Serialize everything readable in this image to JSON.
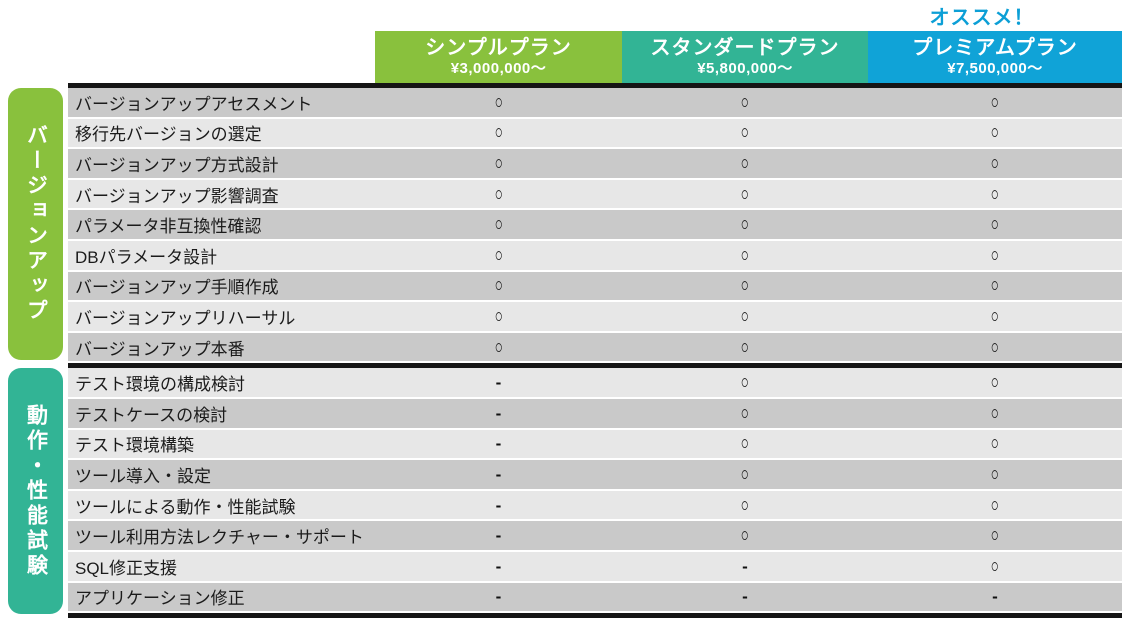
{
  "recommend_label": "オススメ！",
  "colors": {
    "simple_green": "#89C13D",
    "standard_teal": "#32B495",
    "premium_blue": "#10A3D7",
    "recommend_text": "#0C9FD6",
    "row_dark": "#C9C9C9",
    "row_light": "#E7E7E7",
    "divider_black": "#151515"
  },
  "plans": [
    {
      "name": "シンプルプラン",
      "price": "¥3,000,000～"
    },
    {
      "name": "スタンダードプラン",
      "price": "¥5,800,000～"
    },
    {
      "name": "プレミアムプラン",
      "price": "¥7,500,000～",
      "recommended": true
    }
  ],
  "sections": [
    {
      "label": "バージョンアップ",
      "rows": [
        {
          "label": "バージョンアップアセスメント",
          "marks": [
            "○",
            "○",
            "○"
          ]
        },
        {
          "label": "移行先バージョンの選定",
          "marks": [
            "○",
            "○",
            "○"
          ]
        },
        {
          "label": "バージョンアップ方式設計",
          "marks": [
            "○",
            "○",
            "○"
          ]
        },
        {
          "label": "バージョンアップ影響調査",
          "marks": [
            "○",
            "○",
            "○"
          ]
        },
        {
          "label": "パラメータ非互換性確認",
          "marks": [
            "○",
            "○",
            "○"
          ]
        },
        {
          "label": "DBパラメータ設計",
          "marks": [
            "○",
            "○",
            "○"
          ]
        },
        {
          "label": "バージョンアップ手順作成",
          "marks": [
            "○",
            "○",
            "○"
          ]
        },
        {
          "label": "バージョンアップリハーサル",
          "marks": [
            "○",
            "○",
            "○"
          ]
        },
        {
          "label": "バージョンアップ本番",
          "marks": [
            "○",
            "○",
            "○"
          ]
        }
      ]
    },
    {
      "label": "動作・性能試験",
      "rows": [
        {
          "label": "テスト環境の構成検討",
          "marks": [
            "-",
            "○",
            "○"
          ]
        },
        {
          "label": "テストケースの検討",
          "marks": [
            "-",
            "○",
            "○"
          ]
        },
        {
          "label": "テスト環境構築",
          "marks": [
            "-",
            "○",
            "○"
          ]
        },
        {
          "label": "ツール導入・設定",
          "marks": [
            "-",
            "○",
            "○"
          ]
        },
        {
          "label": "ツールによる動作・性能試験",
          "marks": [
            "-",
            "○",
            "○"
          ]
        },
        {
          "label": "ツール利用方法レクチャー・サポート",
          "marks": [
            "-",
            "○",
            "○"
          ]
        },
        {
          "label": "SQL修正支援",
          "marks": [
            "-",
            "-",
            "○"
          ]
        },
        {
          "label": "アプリケーション修正",
          "marks": [
            "-",
            "-",
            "-"
          ]
        }
      ]
    }
  ],
  "chart_data": {
    "type": "table",
    "title": "",
    "annotations": [
      "オススメ！ → プレミアムプラン"
    ],
    "columns": [
      "シンプルプラン ¥3,000,000～",
      "スタンダードプラン ¥5,800,000～",
      "プレミアムプラン ¥7,500,000～"
    ],
    "row_groups": [
      "バージョンアップ",
      "動作・性能試験"
    ],
    "rows": [
      [
        "バージョンアップ",
        "バージョンアップアセスメント",
        "○",
        "○",
        "○"
      ],
      [
        "バージョンアップ",
        "移行先バージョンの選定",
        "○",
        "○",
        "○"
      ],
      [
        "バージョンアップ",
        "バージョンアップ方式設計",
        "○",
        "○",
        "○"
      ],
      [
        "バージョンアップ",
        "バージョンアップ影響調査",
        "○",
        "○",
        "○"
      ],
      [
        "バージョンアップ",
        "パラメータ非互換性確認",
        "○",
        "○",
        "○"
      ],
      [
        "バージョンアップ",
        "DBパラメータ設計",
        "○",
        "○",
        "○"
      ],
      [
        "バージョンアップ",
        "バージョンアップ手順作成",
        "○",
        "○",
        "○"
      ],
      [
        "バージョンアップ",
        "バージョンアップリハーサル",
        "○",
        "○",
        "○"
      ],
      [
        "バージョンアップ",
        "バージョンアップ本番",
        "○",
        "○",
        "○"
      ],
      [
        "動作・性能試験",
        "テスト環境の構成検討",
        "-",
        "○",
        "○"
      ],
      [
        "動作・性能試験",
        "テストケースの検討",
        "-",
        "○",
        "○"
      ],
      [
        "動作・性能試験",
        "テスト環境構築",
        "-",
        "○",
        "○"
      ],
      [
        "動作・性能試験",
        "ツール導入・設定",
        "-",
        "○",
        "○"
      ],
      [
        "動作・性能試験",
        "ツールによる動作・性能試験",
        "-",
        "○",
        "○"
      ],
      [
        "動作・性能試験",
        "ツール利用方法レクチャー・サポート",
        "-",
        "○",
        "○"
      ],
      [
        "動作・性能試験",
        "SQL修正支援",
        "-",
        "-",
        "○"
      ],
      [
        "動作・性能試験",
        "アプリケーション修正",
        "-",
        "-",
        "-"
      ]
    ]
  }
}
